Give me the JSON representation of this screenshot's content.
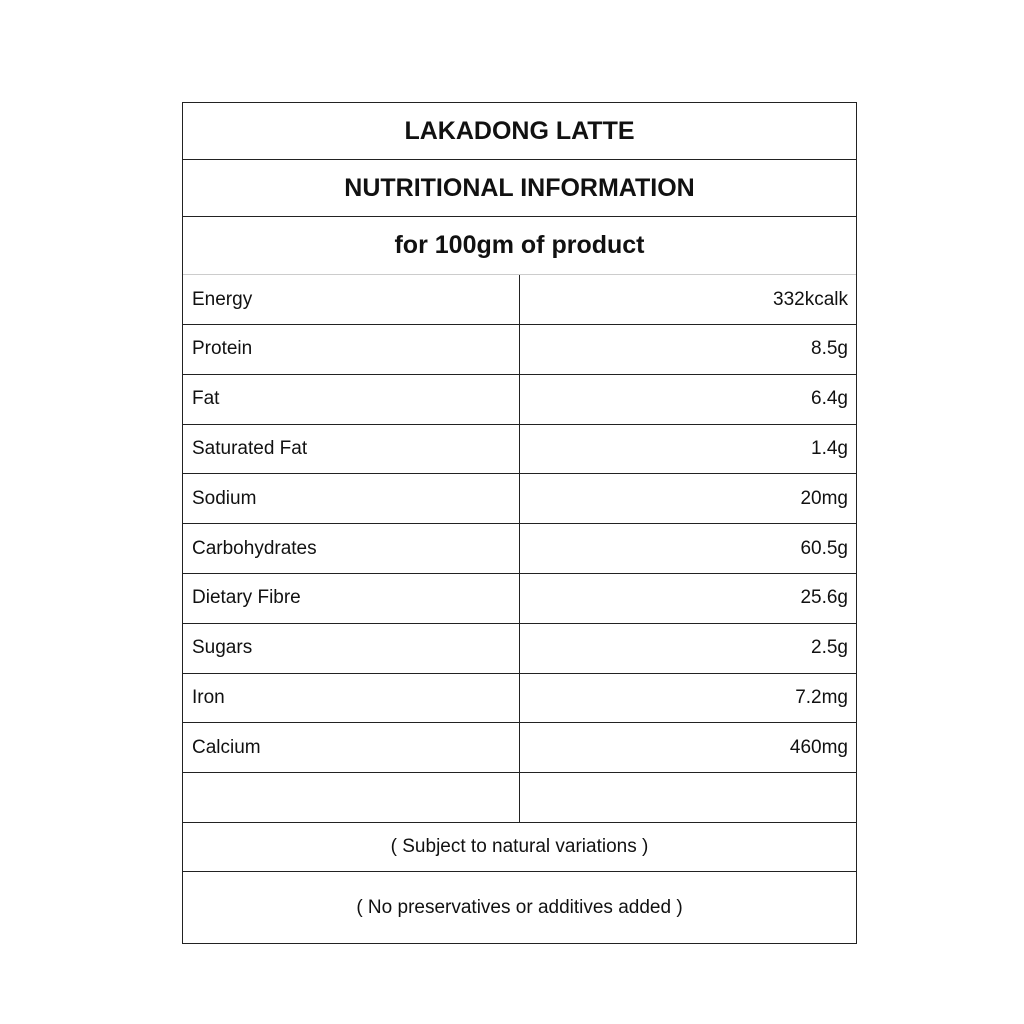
{
  "title": "LAKADONG LATTE",
  "subtitle": "NUTRITIONAL INFORMATION",
  "basis": "for 100gm of product",
  "rows": [
    {
      "label": "Energy",
      "value": "332kcalk"
    },
    {
      "label": "Protein",
      "value": "8.5g"
    },
    {
      "label": "Fat",
      "value": "6.4g"
    },
    {
      "label": "Saturated Fat",
      "value": "1.4g"
    },
    {
      "label": "Sodium",
      "value": "20mg"
    },
    {
      "label": "Carbohydrates",
      "value": "60.5g"
    },
    {
      "label": "Dietary Fibre",
      "value": "25.6g"
    },
    {
      "label": "Sugars",
      "value": "2.5g"
    },
    {
      "label": "Iron",
      "value": "7.2mg"
    },
    {
      "label": "Calcium",
      "value": "460mg"
    },
    {
      "label": "",
      "value": ""
    }
  ],
  "notes": [
    "( Subject to natural variations )",
    "( No preservatives or additives added )"
  ]
}
